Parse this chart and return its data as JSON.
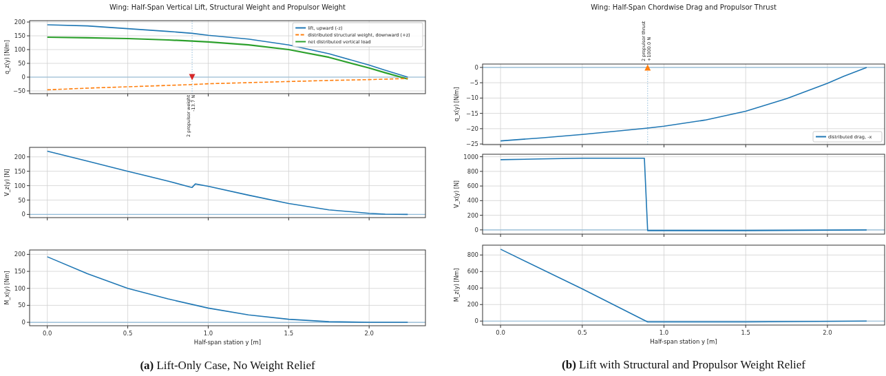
{
  "chart_data": [
    {
      "type": "line",
      "title": "Wing: Half-Span Vertical Lift, Structural Weight and Propulsor Weight",
      "ylabel": "q_z(y) [N/m]",
      "xlim": [
        -0.11,
        2.35
      ],
      "ylim": [
        -60,
        205
      ],
      "xticks": [
        0,
        0.5,
        1,
        1.5,
        2
      ],
      "yticks": [
        {
          "value": -50,
          "label": "−50"
        },
        0,
        50,
        100,
        150,
        200
      ],
      "tick_labels": "y",
      "grid": true,
      "legend": "top right",
      "series": [
        {
          "name": "lift, upward (-z)",
          "color": "#1f77b4",
          "x": [
            0,
            0.25,
            0.5,
            0.75,
            0.9,
            1.0,
            1.25,
            1.5,
            1.75,
            2.0,
            2.1,
            2.24
          ],
          "values": [
            190,
            186,
            176,
            166,
            159,
            152,
            138,
            117,
            85,
            44,
            25,
            0
          ]
        },
        {
          "name": "distributed structural weight, downward (+z)",
          "color": "#ff7f0e",
          "line_style": "dashed",
          "x": [
            0,
            0.25,
            0.5,
            0.75,
            0.9,
            1.0,
            1.25,
            1.5,
            1.75,
            2.0,
            2.24
          ],
          "values": [
            -46,
            -40,
            -35,
            -30,
            -27,
            -24,
            -20,
            -16,
            -12,
            -9,
            -5
          ]
        },
        {
          "name": "net distributed vertical load",
          "color": "#2ca02c",
          "x": [
            0,
            0.25,
            0.5,
            0.75,
            0.9,
            1.0,
            1.25,
            1.5,
            1.75,
            2.0,
            2.1,
            2.24
          ],
          "values": [
            145,
            143,
            140,
            135,
            131,
            128,
            117,
            100,
            72,
            33,
            16,
            -7
          ]
        },
        {
          "type": "scatter",
          "color": "#d62728",
          "x": [
            0.9
          ],
          "values": [
            0
          ]
        }
      ],
      "ref_lines": [
        {
          "axis": "y",
          "value": 0,
          "color": "#8fbbd9"
        },
        {
          "axis": "x",
          "value": 0.9,
          "color": "#8fbbd9",
          "line_style": "dotted",
          "label": "2 propulsor weight\n-13.7 N"
        }
      ]
    },
    {
      "type": "line",
      "ylabel": "V_z(y) [N]",
      "xlim": [
        -0.11,
        2.35
      ],
      "ylim": [
        -11,
        233
      ],
      "xticks": [
        0,
        0.5,
        1,
        1.5,
        2
      ],
      "yticks": [
        0,
        50,
        100,
        150,
        200
      ],
      "tick_labels": "y",
      "grid": true,
      "series": [
        {
          "color": "#1f77b4",
          "x": [
            0,
            0.25,
            0.5,
            0.75,
            0.89,
            0.9,
            0.92,
            1.0,
            1.25,
            1.5,
            1.75,
            2.0,
            2.1,
            2.24
          ],
          "values": [
            220,
            185,
            150,
            116,
            95,
            94,
            106,
            98,
            67,
            38,
            16,
            4,
            1,
            0
          ]
        }
      ],
      "ref_lines": [
        {
          "axis": "y",
          "value": 0,
          "color": "#8fbbd9"
        }
      ]
    },
    {
      "type": "line",
      "ylabel": "M_x(y) [Nm]",
      "xlabel": "Half-span station y [m]",
      "xlim": [
        -0.11,
        2.35
      ],
      "ylim": [
        -10,
        213
      ],
      "xticks": [
        {
          "value": 0,
          "label": "0.0"
        },
        {
          "value": 0.5,
          "label": "0.5"
        },
        {
          "value": 1,
          "label": "1.0"
        },
        {
          "value": 1.5,
          "label": "1.5"
        },
        {
          "value": 2,
          "label": "2.0"
        }
      ],
      "yticks": [
        0,
        50,
        100,
        150,
        200
      ],
      "grid": true,
      "series": [
        {
          "color": "#1f77b4",
          "x": [
            0,
            0.25,
            0.5,
            0.75,
            1.0,
            1.25,
            1.5,
            1.75,
            2.0,
            2.24
          ],
          "values": [
            193,
            143,
            100,
            69,
            42,
            22,
            9,
            2,
            0,
            0
          ]
        }
      ],
      "ref_lines": [
        {
          "axis": "y",
          "value": 0,
          "color": "#8fbbd9"
        }
      ],
      "annotations": [
        "(a) Lift-Only Case, No Weight Relief"
      ]
    },
    {
      "type": "line",
      "title": "Wing: Half-Span Chordwise Drag and Propulsor Thrust",
      "ylabel": "q_x(y) [N/m]",
      "xlim": [
        -0.11,
        2.35
      ],
      "ylim": [
        -25.2,
        1.1
      ],
      "xticks": [
        0,
        0.5,
        1,
        1.5,
        2
      ],
      "yticks": [
        {
          "value": -25,
          "label": "−25"
        },
        {
          "value": -20,
          "label": "−20"
        },
        {
          "value": -15,
          "label": "−15"
        },
        {
          "value": -10,
          "label": "−10"
        },
        {
          "value": -5,
          "label": "−5"
        },
        0
      ],
      "tick_labels": "y",
      "grid": true,
      "legend": "bottom right",
      "series": [
        {
          "name": "distributed drag, -x",
          "color": "#1f77b4",
          "x": [
            0,
            0.25,
            0.5,
            0.75,
            0.9,
            1.0,
            1.25,
            1.5,
            1.75,
            2.0,
            2.1,
            2.24
          ],
          "values": [
            -24,
            -23,
            -21.9,
            -20.6,
            -19.8,
            -19.2,
            -17.2,
            -14.3,
            -10.2,
            -5.2,
            -2.9,
            0
          ]
        },
        {
          "type": "scatter",
          "color": "#ff7f0e",
          "x": [
            0.9
          ],
          "values": [
            0
          ]
        }
      ],
      "ref_lines": [
        {
          "axis": "y",
          "value": 0,
          "color": "#8fbbd9"
        },
        {
          "axis": "x",
          "value": 0.9,
          "color": "#8fbbd9",
          "line_style": "dotted",
          "label": "2 propulsor thrust\n+1000.0 N"
        }
      ]
    },
    {
      "type": "line",
      "ylabel": "V_x(y) [N]",
      "xlim": [
        -0.11,
        2.35
      ],
      "ylim": [
        -58,
        1034
      ],
      "xticks": [
        0,
        0.5,
        1,
        1.5,
        2
      ],
      "yticks": [
        0,
        200,
        400,
        600,
        800,
        1000
      ],
      "tick_labels": "y",
      "grid": true,
      "series": [
        {
          "color": "#1f77b4",
          "x": [
            0,
            0.25,
            0.5,
            0.88,
            0.9,
            1.5,
            2.24
          ],
          "values": [
            960,
            970,
            980,
            980,
            -10,
            -10,
            0
          ]
        }
      ],
      "ref_lines": [
        {
          "axis": "y",
          "value": 0,
          "color": "#8fbbd9"
        }
      ]
    },
    {
      "type": "line",
      "ylabel": "M_z(y) [Nm]",
      "xlabel": "Half-span station y [m]",
      "xlim": [
        -0.11,
        2.35
      ],
      "ylim": [
        -48,
        919
      ],
      "xticks": [
        {
          "value": 0,
          "label": "0.0"
        },
        {
          "value": 0.5,
          "label": "0.5"
        },
        {
          "value": 1,
          "label": "1.0"
        },
        {
          "value": 1.5,
          "label": "1.5"
        },
        {
          "value": 2,
          "label": "2.0"
        }
      ],
      "yticks": [
        0,
        200,
        400,
        600,
        800
      ],
      "grid": true,
      "series": [
        {
          "color": "#1f77b4",
          "x": [
            0,
            0.5,
            0.9,
            1.5,
            2.24
          ],
          "values": [
            870,
            390,
            -10,
            -10,
            0
          ]
        }
      ],
      "ref_lines": [
        {
          "axis": "y",
          "value": 0,
          "color": "#8fbbd9"
        }
      ],
      "annotations": [
        "(b) Lift with Structural and Propulsor Weight Relief"
      ]
    }
  ]
}
